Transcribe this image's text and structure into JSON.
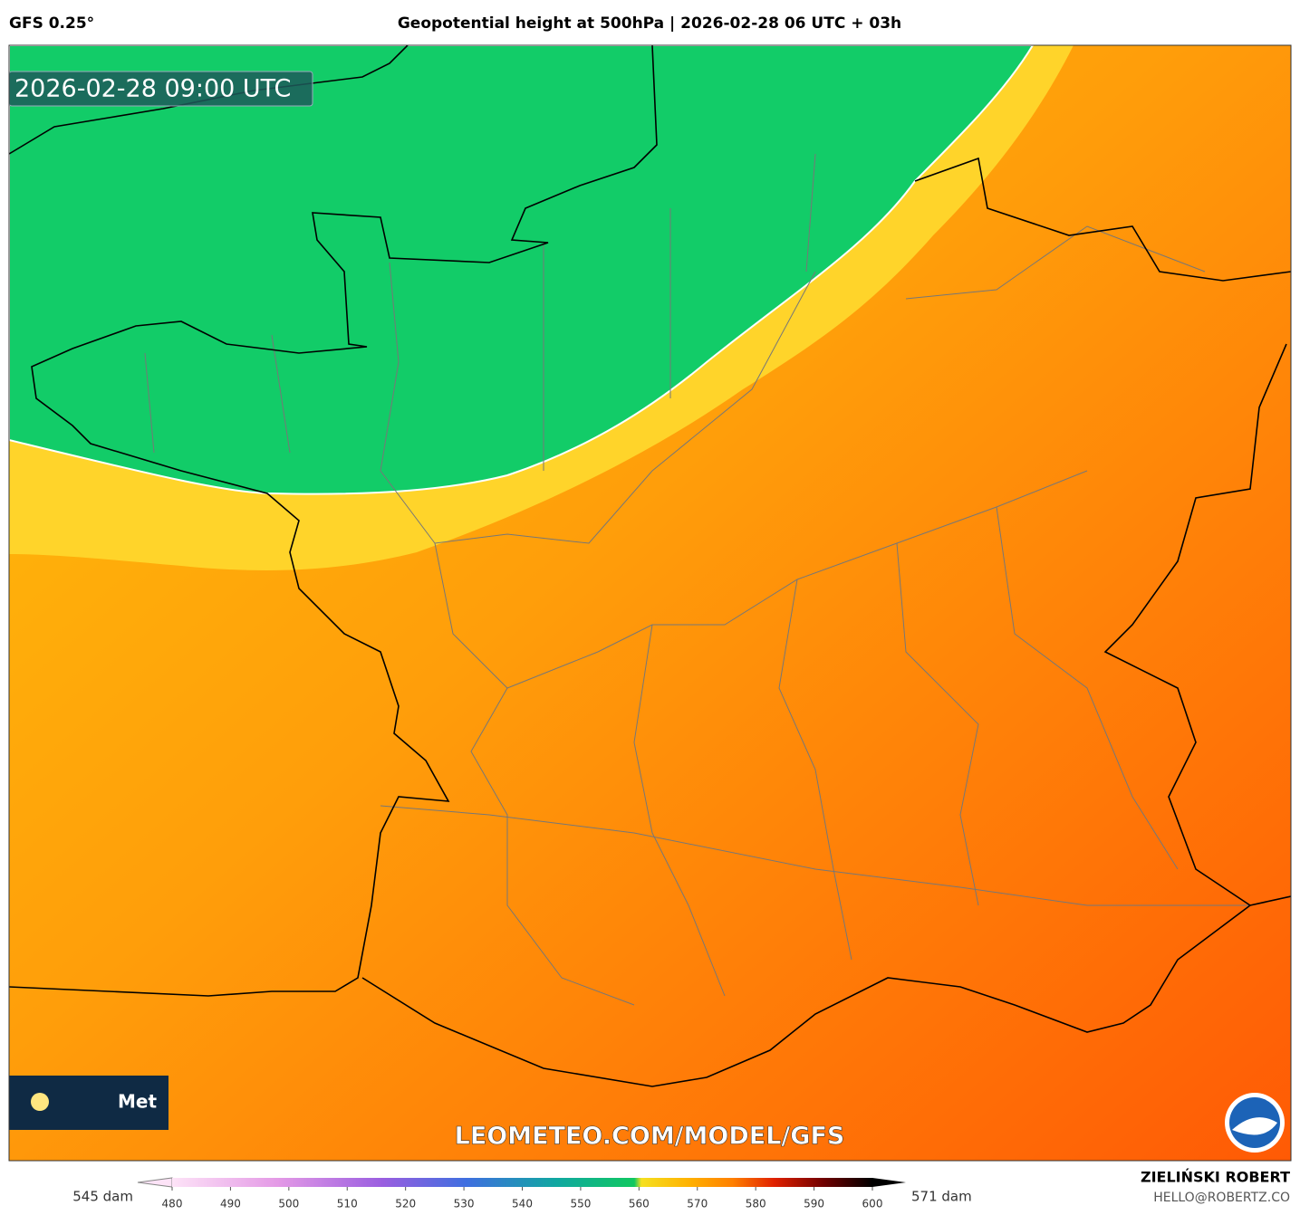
{
  "header": {
    "model": "GFS 0.25°",
    "title": "Geopotential height at 500hPa | 2026-02-28 06 UTC + 03h"
  },
  "map": {
    "valid_time": "2026-02-28 09:00 UTC",
    "watermark": "LEOMETEO.COM/MODEL/GFS",
    "logo_text": "Met"
  },
  "legend": {
    "min_label": "545 dam",
    "max_label": "571 dam",
    "ticks": [
      480,
      490,
      500,
      510,
      520,
      530,
      540,
      550,
      560,
      570,
      580,
      590,
      600
    ]
  },
  "credits": {
    "author": "ZIELIŃSKI ROBERT",
    "email": "HELLO@ROBERTZ.CO"
  }
}
